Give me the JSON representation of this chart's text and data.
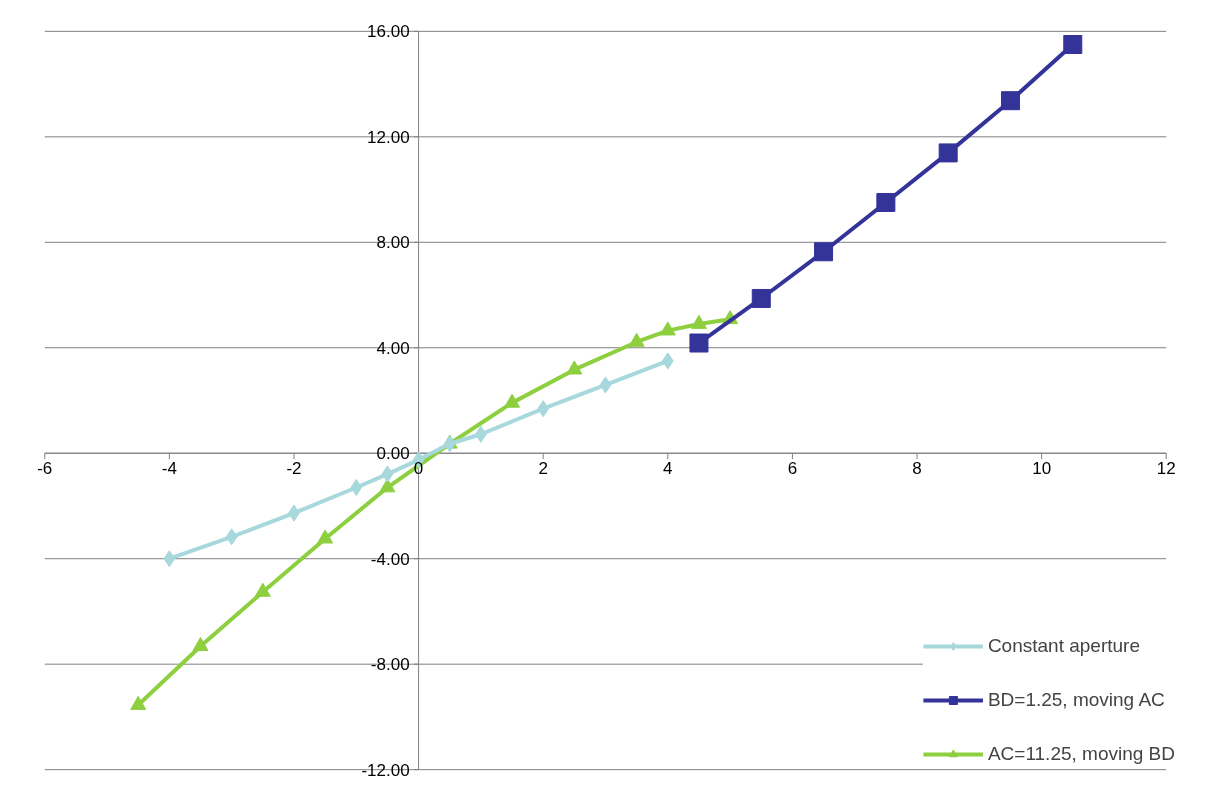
{
  "chart_data": {
    "type": "line",
    "xlim": [
      -6,
      12
    ],
    "xticks": [
      -6,
      -4,
      -2,
      0,
      2,
      4,
      6,
      8,
      10,
      12
    ],
    "ylim": [
      -12,
      16
    ],
    "yticks": [
      {
        "value": -12,
        "label": "-12.00"
      },
      {
        "value": -8,
        "label": "-8.00"
      },
      {
        "value": -4,
        "label": "-4.00"
      },
      {
        "value": 0,
        "label": "0.00"
      },
      {
        "value": 4,
        "label": "4.00"
      },
      {
        "value": 8,
        "label": "8.00"
      },
      {
        "value": 12,
        "label": "12.00"
      },
      {
        "value": 16,
        "label": "16.00"
      }
    ],
    "grid": "y",
    "legend": "bottom right",
    "series": [
      {
        "name": "Constant aperture",
        "color": "#a6d8dc",
        "marker": "diamond",
        "x": [
          -4,
          -3,
          -2,
          -1,
          -0.5,
          0,
          0.5,
          1,
          2,
          3,
          4
        ],
        "values": [
          -4.0,
          -3.17,
          -2.27,
          -1.3,
          -0.79,
          -0.25,
          0.36,
          0.72,
          1.69,
          2.59,
          3.5
        ]
      },
      {
        "name": "BD=1.25, moving AC",
        "color": "#333399",
        "marker": "square",
        "x": [
          4.5,
          5.5,
          6.5,
          7.5,
          8.5,
          9.5,
          10.5
        ],
        "values": [
          4.18,
          5.87,
          7.64,
          9.51,
          11.39,
          13.37,
          15.5
        ]
      },
      {
        "name": "AC=11.25, moving BD",
        "color": "#8dcf3f",
        "marker": "triangle",
        "x": [
          -4.5,
          -3.5,
          -2.5,
          -1.5,
          -0.5,
          0.5,
          1.5,
          2.5,
          3.5,
          4,
          4.5,
          5
        ],
        "values": [
          -9.55,
          -7.32,
          -5.26,
          -3.24,
          -1.3,
          0.36,
          1.91,
          3.17,
          4.22,
          4.65,
          4.9,
          5.08
        ]
      }
    ]
  }
}
